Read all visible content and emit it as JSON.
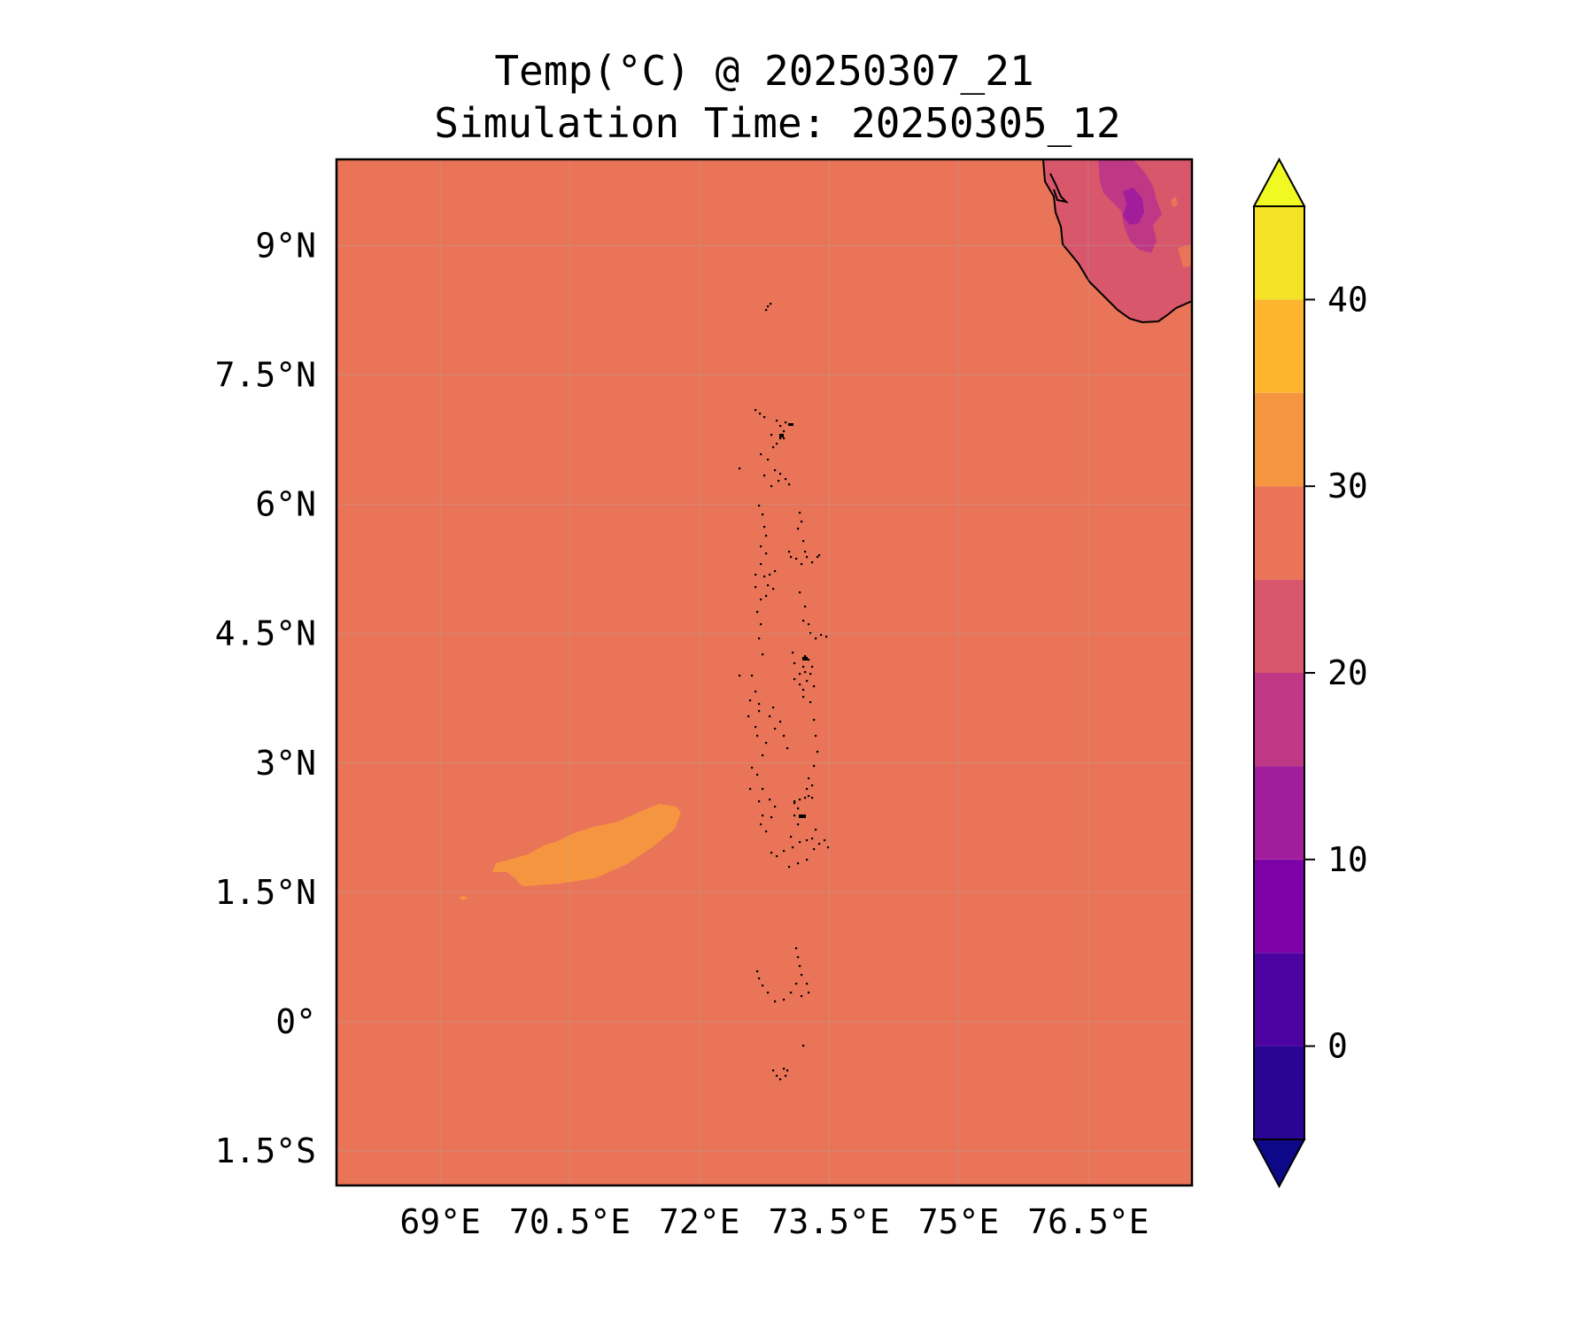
{
  "title": {
    "line1": "Temp(°C) @ 20250307_21",
    "line2": "Simulation Time: 20250305_12"
  },
  "map": {
    "field": "Temp(°C)",
    "background_level_color": "#e97457",
    "extent": {
      "lon_min": 67.8,
      "lon_max": 77.7,
      "lat_min": -1.9,
      "lat_max": 10.0
    },
    "gridlines": true,
    "features": [
      "maldives-atolls-coastline",
      "india-sri-lanka-coastline",
      "warm-patch-30-35C"
    ]
  },
  "axes": {
    "x_ticks": [
      {
        "value": 69,
        "label": "69°E"
      },
      {
        "value": 70.5,
        "label": "70.5°E"
      },
      {
        "value": 72,
        "label": "72°E"
      },
      {
        "value": 73.5,
        "label": "73.5°E"
      },
      {
        "value": 75,
        "label": "75°E"
      },
      {
        "value": 76.5,
        "label": "76.5°E"
      }
    ],
    "y_ticks": [
      {
        "value": 9,
        "label": "9°N"
      },
      {
        "value": 7.5,
        "label": "7.5°N"
      },
      {
        "value": 6,
        "label": "6°N"
      },
      {
        "value": 4.5,
        "label": "4.5°N"
      },
      {
        "value": 3,
        "label": "3°N"
      },
      {
        "value": 1.5,
        "label": "1.5°N"
      },
      {
        "value": 0,
        "label": "0°"
      },
      {
        "value": -1.5,
        "label": "1.5°S"
      }
    ]
  },
  "colorbar": {
    "colormap": "plasma",
    "range": [
      -5,
      45
    ],
    "extend": "both",
    "levels": [
      {
        "min": -5,
        "max": 0,
        "color": "#2a0593"
      },
      {
        "min": 0,
        "max": 5,
        "color": "#4d02a2"
      },
      {
        "min": 5,
        "max": 10,
        "color": "#7d03a8"
      },
      {
        "min": 10,
        "max": 15,
        "color": "#a11d9b"
      },
      {
        "min": 15,
        "max": 20,
        "color": "#be3886"
      },
      {
        "min": 20,
        "max": 25,
        "color": "#d8576b"
      },
      {
        "min": 25,
        "max": 30,
        "color": "#e97457"
      },
      {
        "min": 30,
        "max": 35,
        "color": "#f69540"
      },
      {
        "min": 35,
        "max": 40,
        "color": "#fdb42f"
      },
      {
        "min": 40,
        "max": 45,
        "color": "#f3e226"
      }
    ],
    "under_color": "#0d0887",
    "over_color": "#f0f921",
    "ticks": [
      {
        "value": 0,
        "label": "0"
      },
      {
        "value": 10,
        "label": "10"
      },
      {
        "value": 20,
        "label": "20"
      },
      {
        "value": 30,
        "label": "30"
      },
      {
        "value": 40,
        "label": "40"
      }
    ]
  }
}
